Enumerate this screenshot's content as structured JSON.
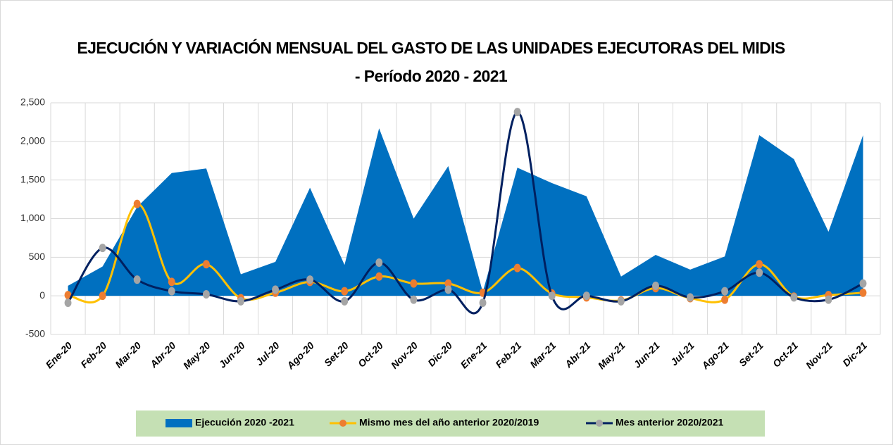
{
  "chart_data": {
    "type": "area-line",
    "title": [
      "EJECUCIÓN Y VARIACIÓN MENSUAL DEL GASTO DE LAS UNIDADES EJECUTORAS DEL MIDIS",
      "- Período 2020 - 2021"
    ],
    "categories": [
      "Ene-20",
      "Feb-20",
      "Mar-20",
      "Abr-20",
      "May-20",
      "Jun-20",
      "Jul-20",
      "Ago-20",
      "Set-20",
      "Oct-20",
      "Nov-20",
      "Dic-20",
      "Ene-21",
      "Feb-21",
      "Mar-21",
      "Abr-21",
      "May-21",
      "Jun-21",
      "Jul-21",
      "Ago-21",
      "Set-21",
      "Oct-21",
      "Nov-21",
      "Dic-21"
    ],
    "series": [
      {
        "name": "Ejecución 2020 -2021",
        "kind": "area",
        "color": "#0070c0",
        "values": [
          130,
          380,
          1150,
          1590,
          1650,
          280,
          440,
          1400,
          400,
          2170,
          1000,
          1680,
          50,
          1660,
          1460,
          1290,
          250,
          530,
          340,
          510,
          2080,
          1770,
          830,
          2080
        ]
      },
      {
        "name": "Mismo mes del año anterior 2020/2019",
        "kind": "line",
        "color": "#ffc000",
        "marker": "#ed7d31",
        "values": [
          10,
          0,
          1190,
          180,
          410,
          -30,
          40,
          180,
          60,
          250,
          160,
          160,
          40,
          360,
          30,
          -20,
          -60,
          100,
          -30,
          -50,
          410,
          -10,
          10,
          40
        ]
      },
      {
        "name": "Mes anterior 2020/2021",
        "kind": "line",
        "color": "#002060",
        "marker": "#a5a5a5",
        "values": [
          -90,
          620,
          210,
          60,
          20,
          -70,
          80,
          210,
          -70,
          430,
          -50,
          80,
          -90,
          2380,
          0,
          0,
          -70,
          130,
          -20,
          60,
          300,
          -20,
          -50,
          160
        ]
      }
    ],
    "ylim": [
      -500,
      2500
    ],
    "yticks": [
      {
        "value": 2500,
        "label": "2,500"
      },
      {
        "value": 2000,
        "label": "2,000"
      },
      {
        "value": 1500,
        "label": "1,500"
      },
      {
        "value": 1000,
        "label": "1,000"
      },
      500,
      0,
      -500
    ],
    "grid": true
  }
}
